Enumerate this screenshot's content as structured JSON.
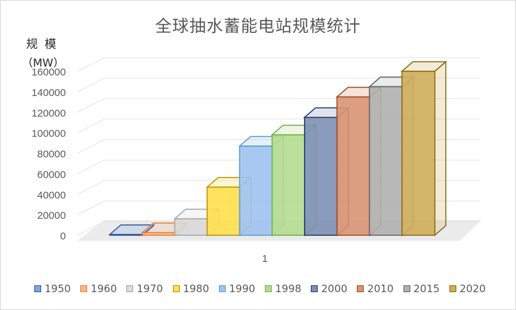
{
  "chart_data": {
    "type": "bar",
    "title": "全球抽水蓄能电站规模统计",
    "ylabel_line1": "规模",
    "ylabel_line2": "（MW）",
    "xlabel": "",
    "categories": [
      "1"
    ],
    "ylim": [
      0,
      160000
    ],
    "yticks": [
      "0",
      "20000",
      "40000",
      "60000",
      "80000",
      "100000",
      "120000",
      "140000",
      "160000"
    ],
    "grid": true,
    "legend_position": "bottom",
    "series": [
      {
        "name": "1950",
        "values": [
          700
        ],
        "color": "#7fa7e0",
        "edge": "#2f55a4"
      },
      {
        "name": "1960",
        "values": [
          2500
        ],
        "color": "#f7b98a",
        "edge": "#ed7d31"
      },
      {
        "name": "1970",
        "values": [
          16000
        ],
        "color": "#d9d9d9",
        "edge": "#a5a5a5"
      },
      {
        "name": "1980",
        "values": [
          47000
        ],
        "color": "#ffe04d",
        "edge": "#bf9000"
      },
      {
        "name": "1990",
        "values": [
          87000
        ],
        "color": "#9dc3f0",
        "edge": "#5b9bd5"
      },
      {
        "name": "1998",
        "values": [
          98000
        ],
        "color": "#b5db8f",
        "edge": "#70ad47"
      },
      {
        "name": "2000",
        "values": [
          115000
        ],
        "color": "#7d90b5",
        "edge": "#203864"
      },
      {
        "name": "2010",
        "values": [
          135000
        ],
        "color": "#d99473",
        "edge": "#9e4a1f"
      },
      {
        "name": "2015",
        "values": [
          145000
        ],
        "color": "#b0b0b0",
        "edge": "#636363"
      },
      {
        "name": "2020",
        "values": [
          160000
        ],
        "color": "#cfae5a",
        "edge": "#8a6a12"
      }
    ]
  }
}
